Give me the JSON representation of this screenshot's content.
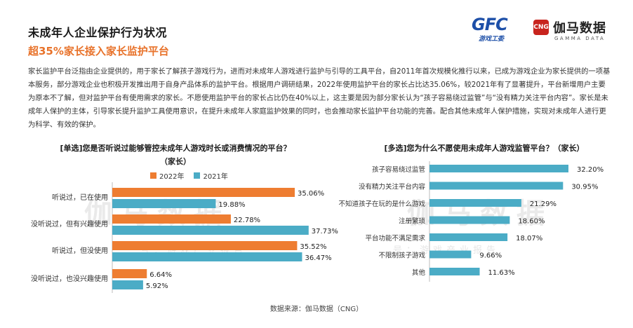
{
  "header": {
    "title": "未成年人企业保护行为状况",
    "subtitle": "超35%家长接入家长监护平台"
  },
  "logos": {
    "gfc_text": "GFC",
    "gfc_sub": "游戏工委",
    "cng_badge": "CNG",
    "cng_name": "伽马数据",
    "cng_en": "GAMMA DATA"
  },
  "description": "家长监护平台泛指由企业提供的，用于家长了解孩子游戏行为，进而对未成年人游戏进行监护与引导的工具平台，自2011年首次规模化推行以来，已成为游戏企业为家长提供的一项基本服务，部分游戏企业也积极开发推出用于自身产品体系的监护平台。根据用户调研结果，2022年使用监护平台的家长占比达35.06%，较2021年有了显著提升，平台新增用户主要为原本不了解，但对监护平台有使用需求的家长。不愿使用监护平台的家长占比仍在40%以上，这主要是因为部分家长认为“孩子容易绕过监管”与“没有精力关注平台内容”。家长是未成年人保护的主体，引导家长提升监护工具使用意识，在提升未成年人家庭监护效果的同时，也会推动家长监护平台功能的完善。配合其他未成年人保护措施，实现对未成年人进行更为科学、有效的保护。",
  "watermark": {
    "main": "伽马数据",
    "sub": "号：游戏产业报告"
  },
  "colors": {
    "orange": "#ee7d31",
    "blue": "#4bacc6"
  },
  "chart_data": [
    {
      "type": "bar",
      "orientation": "horizontal",
      "title": "[单选]您是否听说过能够管控未成年人游戏时长或消费情况的平台？",
      "title_line2": "（家长）",
      "categories": [
        "听说过，已在使用",
        "没听说过，但有兴趣使用",
        "听说过，但没使用",
        "没听说过，也没兴趣使用"
      ],
      "series": [
        {
          "name": "2022年",
          "values": [
            35.06,
            22.78,
            35.52,
            6.64
          ],
          "labels": [
            "35.06%",
            "22.78%",
            "35.52%",
            "6.64%"
          ]
        },
        {
          "name": "2021年",
          "values": [
            19.88,
            37.73,
            36.47,
            5.92
          ],
          "labels": [
            "19.88%",
            "37.73%",
            "36.47%",
            "5.92%"
          ]
        }
      ],
      "xlim": [
        0,
        40
      ],
      "legend": "top"
    },
    {
      "type": "bar",
      "orientation": "horizontal",
      "title": "[多选]您为什么不愿使用未成年人游戏监管平台？（家长）",
      "categories": [
        "孩子容易绕过监管",
        "没有精力关注平台内容",
        "不知道孩子在玩的是什么游戏",
        "注册繁琐",
        "平台功能不满足需求",
        "不限制孩子游戏",
        "其他"
      ],
      "series": [
        {
          "name": "占比",
          "values": [
            32.2,
            30.95,
            21.29,
            18.6,
            18.07,
            9.66,
            11.63
          ],
          "labels": [
            "32.20%",
            "30.95%",
            "21.29%",
            "18.60%",
            "18.07%",
            "9.66%",
            "11.63%"
          ]
        }
      ],
      "xlim": [
        0,
        35
      ]
    }
  ],
  "footer": {
    "source": "数据来源：伽马数据（CNG）"
  }
}
